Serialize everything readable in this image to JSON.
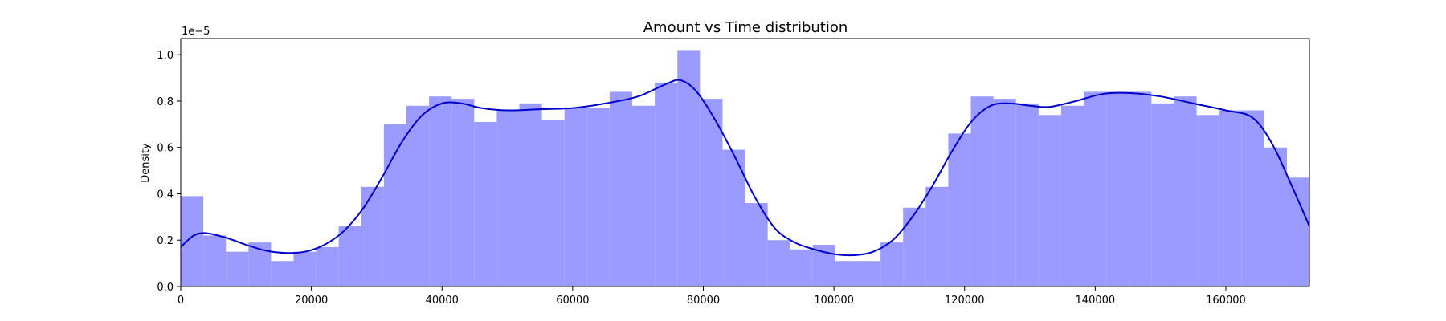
{
  "chart_data": {
    "type": "bar",
    "title": "Amount vs Time distribution",
    "xlabel": "",
    "ylabel": "Density",
    "y_offset_label": "1e−5",
    "y_scale_factor": 1e-05,
    "xlim": [
      0,
      172792
    ],
    "ylim": [
      0,
      1.07
    ],
    "grid": false,
    "legend": "none",
    "x_ticks": [
      "0",
      "20000",
      "40000",
      "60000",
      "80000",
      "100000",
      "120000",
      "140000",
      "160000"
    ],
    "x_tick_values": [
      0,
      20000,
      40000,
      60000,
      80000,
      100000,
      120000,
      140000,
      160000
    ],
    "y_ticks": [
      "0.0",
      "0.2",
      "0.4",
      "0.6",
      "0.8",
      "1.0"
    ],
    "y_tick_values": [
      0,
      0.2,
      0.4,
      0.6,
      0.8,
      1.0
    ],
    "bin_width": 3456,
    "series": [
      {
        "kind": "histogram",
        "color": "#9a9aff",
        "values": [
          0.39,
          0.22,
          0.15,
          0.19,
          0.11,
          0.15,
          0.17,
          0.26,
          0.43,
          0.7,
          0.78,
          0.82,
          0.81,
          0.71,
          0.76,
          0.79,
          0.72,
          0.77,
          0.77,
          0.84,
          0.78,
          0.88,
          1.02,
          0.81,
          0.59,
          0.36,
          0.2,
          0.16,
          0.18,
          0.11,
          0.11,
          0.19,
          0.34,
          0.43,
          0.66,
          0.82,
          0.81,
          0.79,
          0.74,
          0.78,
          0.84,
          0.84,
          0.84,
          0.79,
          0.82,
          0.74,
          0.76,
          0.76,
          0.6,
          0.47
        ]
      },
      {
        "kind": "kde",
        "color": "#0000cc",
        "points": [
          [
            0,
            0.17
          ],
          [
            2000,
            0.22
          ],
          [
            4000,
            0.23
          ],
          [
            7000,
            0.21
          ],
          [
            10000,
            0.18
          ],
          [
            13000,
            0.155
          ],
          [
            16000,
            0.145
          ],
          [
            19000,
            0.15
          ],
          [
            22000,
            0.18
          ],
          [
            25000,
            0.24
          ],
          [
            28000,
            0.34
          ],
          [
            31000,
            0.48
          ],
          [
            34000,
            0.63
          ],
          [
            37000,
            0.74
          ],
          [
            40000,
            0.79
          ],
          [
            43000,
            0.79
          ],
          [
            46000,
            0.77
          ],
          [
            50000,
            0.76
          ],
          [
            55000,
            0.765
          ],
          [
            60000,
            0.77
          ],
          [
            65000,
            0.79
          ],
          [
            70000,
            0.82
          ],
          [
            74000,
            0.87
          ],
          [
            76500,
            0.89
          ],
          [
            79000,
            0.84
          ],
          [
            82000,
            0.71
          ],
          [
            85000,
            0.55
          ],
          [
            88000,
            0.38
          ],
          [
            91000,
            0.25
          ],
          [
            94000,
            0.19
          ],
          [
            97000,
            0.16
          ],
          [
            100000,
            0.14
          ],
          [
            103000,
            0.135
          ],
          [
            106000,
            0.15
          ],
          [
            109000,
            0.2
          ],
          [
            112000,
            0.3
          ],
          [
            115000,
            0.43
          ],
          [
            118000,
            0.58
          ],
          [
            121000,
            0.71
          ],
          [
            124000,
            0.78
          ],
          [
            127000,
            0.79
          ],
          [
            130000,
            0.78
          ],
          [
            133000,
            0.775
          ],
          [
            137000,
            0.8
          ],
          [
            141000,
            0.83
          ],
          [
            145000,
            0.835
          ],
          [
            150000,
            0.82
          ],
          [
            155000,
            0.79
          ],
          [
            160000,
            0.76
          ],
          [
            164000,
            0.73
          ],
          [
            167000,
            0.62
          ],
          [
            170000,
            0.44
          ],
          [
            172792,
            0.26
          ]
        ]
      }
    ]
  }
}
